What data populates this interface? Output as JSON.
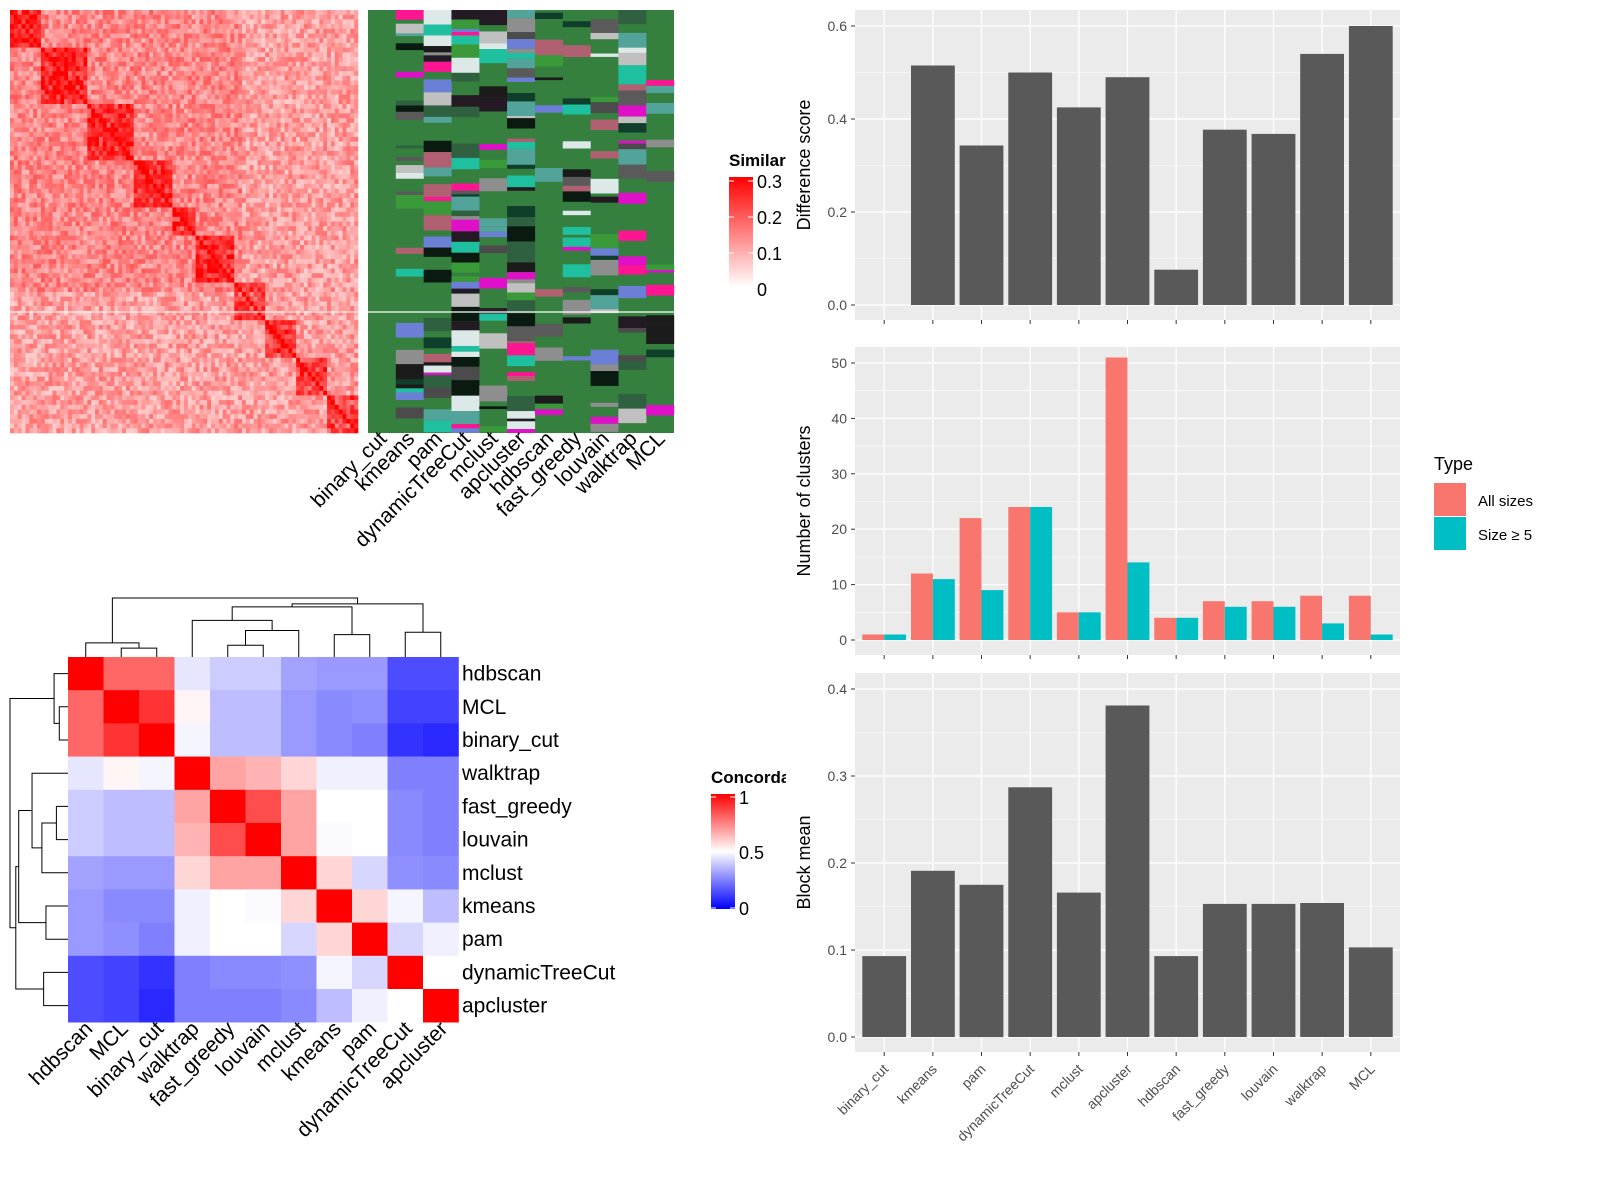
{
  "chart_data": [
    {
      "type": "heatmap",
      "legend_title": "Similarity",
      "legend_ticks": [
        "0",
        "0.1",
        "0.2",
        "0.3"
      ],
      "colors": {
        "low": "#ffffff",
        "high": "#ff0000"
      },
      "column_labels": [
        "binary_cut",
        "kmeans",
        "pam",
        "dynamicTreeCut",
        "mclust",
        "apcluster",
        "hdbscan",
        "fast_greedy",
        "louvain",
        "walktrap",
        "MCL"
      ],
      "cluster_base_color": "#35803f"
    },
    {
      "type": "heatmap",
      "legend_title": "Concordance",
      "legend_ticks": [
        "0",
        "0.5",
        "1"
      ],
      "colors": {
        "low": "#0000ff",
        "mid": "#ffffff",
        "high": "#ff0000"
      },
      "labels": [
        "hdbscan",
        "MCL",
        "binary_cut",
        "walktrap",
        "fast_greedy",
        "louvain",
        "mclust",
        "kmeans",
        "pam",
        "dynamicTreeCut",
        "apcluster"
      ],
      "values": [
        [
          1.0,
          0.8,
          0.8,
          0.45,
          0.4,
          0.4,
          0.32,
          0.3,
          0.3,
          0.15,
          0.15
        ],
        [
          0.8,
          1.0,
          0.9,
          0.52,
          0.37,
          0.37,
          0.3,
          0.27,
          0.28,
          0.13,
          0.13
        ],
        [
          0.8,
          0.9,
          1.0,
          0.48,
          0.37,
          0.37,
          0.3,
          0.27,
          0.25,
          0.1,
          0.08
        ],
        [
          0.45,
          0.52,
          0.48,
          1.0,
          0.68,
          0.65,
          0.58,
          0.47,
          0.47,
          0.25,
          0.25
        ],
        [
          0.4,
          0.37,
          0.37,
          0.68,
          1.0,
          0.85,
          0.68,
          0.5,
          0.5,
          0.27,
          0.25
        ],
        [
          0.4,
          0.37,
          0.37,
          0.65,
          0.85,
          1.0,
          0.68,
          0.49,
          0.5,
          0.27,
          0.25
        ],
        [
          0.32,
          0.3,
          0.3,
          0.58,
          0.68,
          0.68,
          1.0,
          0.58,
          0.42,
          0.28,
          0.27
        ],
        [
          0.3,
          0.27,
          0.27,
          0.47,
          0.5,
          0.49,
          0.58,
          1.0,
          0.58,
          0.48,
          0.37
        ],
        [
          0.3,
          0.28,
          0.25,
          0.47,
          0.5,
          0.5,
          0.42,
          0.58,
          1.0,
          0.42,
          0.47
        ],
        [
          0.15,
          0.13,
          0.1,
          0.25,
          0.27,
          0.27,
          0.28,
          0.48,
          0.42,
          1.0,
          0.5
        ],
        [
          0.15,
          0.13,
          0.08,
          0.25,
          0.25,
          0.25,
          0.27,
          0.37,
          0.47,
          0.5,
          1.0
        ]
      ]
    },
    {
      "type": "bar",
      "categories": [
        "binary_cut",
        "kmeans",
        "pam",
        "dynamicTreeCut",
        "mclust",
        "apcluster",
        "hdbscan",
        "fast_greedy",
        "louvain",
        "walktrap",
        "MCL"
      ],
      "values": [
        0,
        0.515,
        0.343,
        0.5,
        0.425,
        0.49,
        0.076,
        0.377,
        0.368,
        0.54,
        0.6
      ],
      "ylabel": "Difference score",
      "ylim": [
        0,
        0.6
      ],
      "yticks": [
        "0.0",
        "0.2",
        "0.4",
        "0.6"
      ],
      "grid": true,
      "color": "#595959"
    },
    {
      "type": "bar",
      "categories": [
        "binary_cut",
        "kmeans",
        "pam",
        "dynamicTreeCut",
        "mclust",
        "apcluster",
        "hdbscan",
        "fast_greedy",
        "louvain",
        "walktrap",
        "MCL"
      ],
      "series": [
        {
          "name": "All sizes",
          "values": [
            1,
            12,
            22,
            24,
            5,
            51,
            4,
            7,
            7,
            8,
            8
          ],
          "color": "#f8766d"
        },
        {
          "name": "Size ≥ 5",
          "values": [
            1,
            11,
            9,
            24,
            5,
            14,
            4,
            6,
            6,
            3,
            1
          ],
          "color": "#00bfc4"
        }
      ],
      "ylabel": "Number of clusters",
      "ylim": [
        0,
        50
      ],
      "yticks": [
        "0",
        "10",
        "20",
        "30",
        "40",
        "50"
      ],
      "legend_title": "Type",
      "legend_position": "right",
      "grid": true
    },
    {
      "type": "bar",
      "categories": [
        "binary_cut",
        "kmeans",
        "pam",
        "dynamicTreeCut",
        "mclust",
        "apcluster",
        "hdbscan",
        "fast_greedy",
        "louvain",
        "walktrap",
        "MCL"
      ],
      "values": [
        0.093,
        0.191,
        0.175,
        0.287,
        0.166,
        0.381,
        0.093,
        0.153,
        0.153,
        0.154,
        0.103
      ],
      "ylabel": "Block mean",
      "ylim": [
        0,
        0.4
      ],
      "yticks": [
        "0.0",
        "0.1",
        "0.2",
        "0.3",
        "0.4"
      ],
      "grid": true,
      "color": "#595959"
    }
  ]
}
